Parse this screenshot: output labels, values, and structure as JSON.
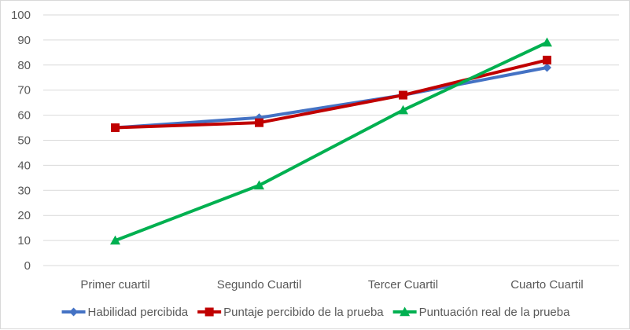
{
  "chart_data": {
    "type": "line",
    "categories": [
      "Primer cuartil",
      "Segundo Cuartil",
      "Tercer Cuartil",
      "Cuarto Cuartil"
    ],
    "series": [
      {
        "name": "Habilidad percibida",
        "values": [
          55,
          59,
          68,
          79
        ],
        "color": "#4472C4",
        "marker": "diamond"
      },
      {
        "name": "Puntaje percibido de la prueba",
        "values": [
          55,
          57,
          68,
          82
        ],
        "color": "#C00000",
        "marker": "square"
      },
      {
        "name": "Puntuación real de la prueba",
        "values": [
          10,
          32,
          62,
          89
        ],
        "color": "#00B050",
        "marker": "triangle"
      }
    ],
    "ylim": [
      0,
      100
    ],
    "yticks": [
      0,
      10,
      20,
      30,
      40,
      50,
      60,
      70,
      80,
      90,
      100
    ],
    "grid": true,
    "legend_position": "bottom"
  }
}
